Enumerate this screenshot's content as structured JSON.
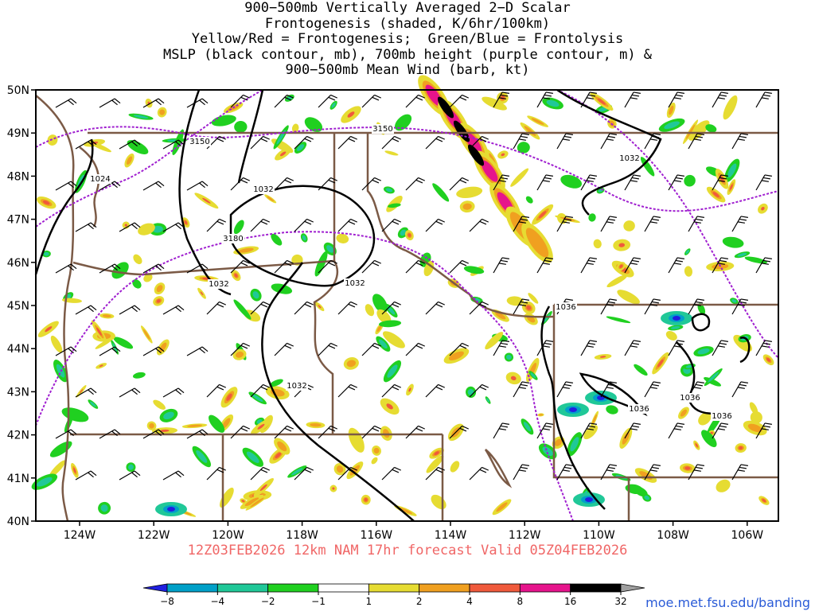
{
  "title_lines": [
    "900−500mb Vertically Averaged 2−D Scalar",
    "Frontogenesis (shaded, K/6hr/100km)",
    "Yellow/Red = Frontogenesis;  Green/Blue = Frontolysis",
    "MSLP (black contour, mb), 700mb height (purple contour, m) &",
    "900−500mb Mean Wind (barb, kt)"
  ],
  "lat_labels": [
    "50N",
    "49N",
    "48N",
    "47N",
    "46N",
    "45N",
    "44N",
    "43N",
    "42N",
    "41N",
    "40N"
  ],
  "lon_labels": [
    "124W",
    "122W",
    "120W",
    "118W",
    "116W",
    "114W",
    "112W",
    "110W",
    "108W",
    "106W"
  ],
  "mslp_contour_labels": [
    "1024",
    "1032",
    "1032",
    "1032",
    "1032",
    "1032",
    "1036",
    "1036",
    "1036",
    "1036"
  ],
  "height_contour_labels": [
    "3150",
    "3150",
    "3180"
  ],
  "footer": "12Z03FEB2026 12km NAM 17hr forecast Valid 05Z04FEB2026",
  "source": "moe.met.fsu.edu/banding",
  "colorbar": {
    "labels": [
      "−8",
      "−4",
      "−2",
      "−1",
      "1",
      "2",
      "4",
      "8",
      "16",
      "32"
    ],
    "colors": [
      "#2020e0",
      "#00a0c8",
      "#20c898",
      "#20d020",
      "#ffffff",
      "#e6dc32",
      "#f0a020",
      "#f05a3c",
      "#e6148c",
      "#000000",
      "#a0a0a0"
    ]
  },
  "colors": {
    "mslp": "#000000",
    "height": "#a020d0",
    "borders": "#7b5a46",
    "footer": "#f06666",
    "source": "#2a5bd7"
  }
}
